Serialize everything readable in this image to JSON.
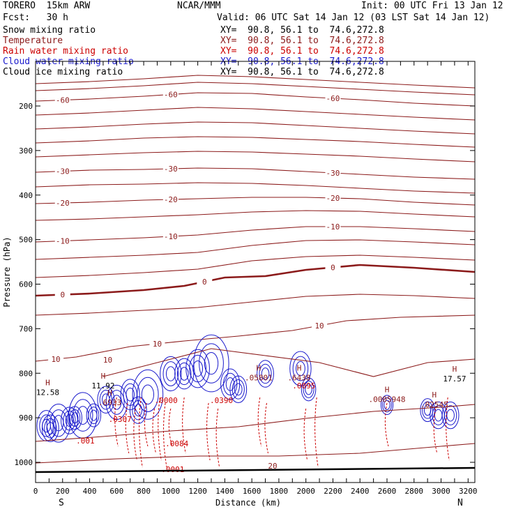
{
  "header": {
    "model": "TORERO  15km ARW",
    "center": "NCAR/MMM",
    "init": "Init: 00 UTC Fri 13 Jan 12",
    "fcst": "Fcst:   30 h",
    "valid": "Valid: 06 UTC Sat 14 Jan 12 (03 LST Sat 14 Jan 12)"
  },
  "legend": [
    {
      "label": "Snow mixing ratio",
      "xy": "XY=  90.8, 56.1 to  74.6,272.8",
      "color": "#000000"
    },
    {
      "label": "Temperature",
      "xy": "XY=  90.8, 56.1 to  74.6,272.8",
      "color": "#8b1a1a"
    },
    {
      "label": "Rain water mixing ratio",
      "xy": "XY=  90.8, 56.1 to  74.6,272.8",
      "color": "#cc0000"
    },
    {
      "label": "Cloud water mixing ratio",
      "xy": "XY=  90.8, 56.1 to  74.6,272.8",
      "color": "#1a1acc"
    },
    {
      "label": "Cloud ice mixing ratio",
      "xy": "XY=  90.8, 56.1 to  74.6,272.8",
      "color": "#000000"
    }
  ],
  "chart_data": {
    "type": "line",
    "title": "Vertical cross section",
    "xlabel": "Distance (km)",
    "ylabel": "Pressure (hPa)",
    "xlim": [
      0,
      3250
    ],
    "ylim": [
      1050,
      150
    ],
    "x_ticks": [
      0,
      100,
      200,
      300,
      400,
      500,
      600,
      700,
      800,
      900,
      1000,
      1100,
      1200,
      1300,
      1400,
      1500,
      1600,
      1700,
      1800,
      1900,
      2000,
      2100,
      2200,
      2300,
      2400,
      2500,
      2600,
      2700,
      2800,
      2900,
      3000,
      3100,
      3200
    ],
    "x_tick_labels": [
      "0",
      "200",
      "400",
      "600",
      "800",
      "1000",
      "1200",
      "1400",
      "1600",
      "1800",
      "2000",
      "2200",
      "2400",
      "2600",
      "2800",
      "3000",
      "3200"
    ],
    "y_tick_labels": [
      "200",
      "300",
      "400",
      "500",
      "600",
      "700",
      "800",
      "900",
      "1000"
    ],
    "endpoints": {
      "left": "S",
      "right": "N"
    },
    "temperature_isotherms": [
      {
        "name": "-60a",
        "points": [
          [
            0,
            120
          ],
          [
            400,
            117
          ],
          [
            800,
            113
          ],
          [
            1200,
            108
          ],
          [
            1600,
            110
          ],
          [
            2000,
            114
          ],
          [
            2400,
            118
          ],
          [
            2800,
            122
          ],
          [
            3250,
            126
          ]
        ]
      },
      {
        "name": "-60b",
        "points": [
          [
            0,
            130
          ],
          [
            400,
            127
          ],
          [
            800,
            123
          ],
          [
            1200,
            118
          ],
          [
            1600,
            120
          ],
          [
            2000,
            124
          ],
          [
            2400,
            128
          ],
          [
            2800,
            132
          ],
          [
            3250,
            136
          ]
        ]
      },
      {
        "name": "-60",
        "label": "-60",
        "points": [
          [
            0,
            145
          ],
          [
            400,
            142
          ],
          [
            800,
            138
          ],
          [
            1200,
            133
          ],
          [
            1600,
            134
          ],
          [
            2000,
            139
          ],
          [
            2400,
            143
          ],
          [
            2800,
            148
          ],
          [
            3250,
            152
          ]
        ]
      },
      {
        "name": "-55",
        "points": [
          [
            0,
            165
          ],
          [
            400,
            162
          ],
          [
            800,
            158
          ],
          [
            1200,
            154
          ],
          [
            1600,
            156
          ],
          [
            2000,
            160
          ],
          [
            2400,
            164
          ],
          [
            2800,
            168
          ],
          [
            3250,
            172
          ]
        ]
      },
      {
        "name": "-52",
        "points": [
          [
            0,
            185
          ],
          [
            400,
            182
          ],
          [
            800,
            178
          ],
          [
            1200,
            175
          ],
          [
            1600,
            176
          ],
          [
            2000,
            180
          ],
          [
            2400,
            184
          ],
          [
            2800,
            188
          ],
          [
            3250,
            192
          ]
        ]
      },
      {
        "name": "-48",
        "points": [
          [
            0,
            205
          ],
          [
            400,
            202
          ],
          [
            800,
            198
          ],
          [
            1200,
            196
          ],
          [
            1600,
            197
          ],
          [
            2000,
            200
          ],
          [
            2400,
            203
          ],
          [
            2800,
            207
          ],
          [
            3250,
            211
          ]
        ]
      },
      {
        "name": "-44",
        "points": [
          [
            0,
            225
          ],
          [
            400,
            222
          ],
          [
            800,
            219
          ],
          [
            1200,
            217
          ],
          [
            1600,
            218
          ],
          [
            2000,
            221
          ],
          [
            2400,
            224
          ],
          [
            2800,
            228
          ],
          [
            3250,
            232
          ]
        ]
      },
      {
        "name": "-30",
        "label": "-30",
        "points": [
          [
            0,
            247
          ],
          [
            400,
            244
          ],
          [
            800,
            243
          ],
          [
            1200,
            241
          ],
          [
            1600,
            242
          ],
          [
            2000,
            246
          ],
          [
            2400,
            250
          ],
          [
            2800,
            254
          ],
          [
            3250,
            257
          ]
        ]
      },
      {
        "name": "-26",
        "points": [
          [
            0,
            268
          ],
          [
            400,
            265
          ],
          [
            800,
            264
          ],
          [
            1200,
            262
          ],
          [
            1600,
            263
          ],
          [
            2000,
            266
          ],
          [
            2400,
            270
          ],
          [
            2800,
            274
          ],
          [
            3250,
            277
          ]
        ]
      },
      {
        "name": "-20",
        "label": "-20",
        "points": [
          [
            0,
            292
          ],
          [
            400,
            290
          ],
          [
            800,
            287
          ],
          [
            1200,
            285
          ],
          [
            1600,
            283
          ],
          [
            2000,
            283
          ],
          [
            2400,
            285
          ],
          [
            2800,
            290
          ],
          [
            3250,
            294
          ]
        ]
      },
      {
        "name": "-16",
        "points": [
          [
            0,
            316
          ],
          [
            400,
            314
          ],
          [
            800,
            311
          ],
          [
            1200,
            308
          ],
          [
            1600,
            304
          ],
          [
            2000,
            302
          ],
          [
            2400,
            303
          ],
          [
            2800,
            307
          ],
          [
            3250,
            311
          ]
        ]
      },
      {
        "name": "-10",
        "label": "-10",
        "points": [
          [
            0,
            347
          ],
          [
            400,
            344
          ],
          [
            800,
            341
          ],
          [
            1200,
            337
          ],
          [
            1600,
            330
          ],
          [
            2000,
            325
          ],
          [
            2400,
            325
          ],
          [
            2800,
            328
          ],
          [
            3250,
            332
          ]
        ]
      },
      {
        "name": "-6",
        "points": [
          [
            0,
            372
          ],
          [
            400,
            369
          ],
          [
            800,
            366
          ],
          [
            1200,
            362
          ],
          [
            1600,
            352
          ],
          [
            2000,
            345
          ],
          [
            2400,
            344
          ],
          [
            2800,
            347
          ],
          [
            3250,
            351
          ]
        ]
      },
      {
        "name": "-3",
        "points": [
          [
            0,
            398
          ],
          [
            400,
            395
          ],
          [
            800,
            391
          ],
          [
            1200,
            386
          ],
          [
            1600,
            374
          ],
          [
            2000,
            368
          ],
          [
            2400,
            366
          ],
          [
            2800,
            369
          ],
          [
            3250,
            373
          ]
        ]
      },
      {
        "name": "0",
        "label": "0",
        "heavy": true,
        "points": [
          [
            0,
            424
          ],
          [
            400,
            421
          ],
          [
            800,
            416
          ],
          [
            1100,
            410
          ],
          [
            1400,
            398
          ],
          [
            1700,
            396
          ],
          [
            2000,
            387
          ],
          [
            2400,
            380
          ],
          [
            2800,
            384
          ],
          [
            3250,
            390
          ]
        ]
      },
      {
        "name": "3",
        "points": [
          [
            0,
            452
          ],
          [
            400,
            449
          ],
          [
            800,
            445
          ],
          [
            1200,
            441
          ],
          [
            1600,
            433
          ],
          [
            2000,
            425
          ],
          [
            2400,
            422
          ],
          [
            2800,
            424
          ],
          [
            3250,
            428
          ]
        ]
      },
      {
        "name": "10",
        "label": "10",
        "points": [
          [
            0,
            518
          ],
          [
            300,
            512
          ],
          [
            700,
            497
          ],
          [
            1100,
            489
          ],
          [
            1500,
            482
          ],
          [
            1900,
            474
          ],
          [
            2300,
            460
          ],
          [
            2700,
            455
          ],
          [
            3250,
            452
          ]
        ]
      }
    ],
    "h_markers": [
      {
        "x": 90,
        "p": 843,
        "value": "12.58"
      },
      {
        "x": 500,
        "p": 828,
        "value": "11.92"
      },
      {
        "x": 3100,
        "p": 812,
        "value": "17.57"
      },
      {
        "x": 550,
        "p": 865,
        "value": ".6933"
      },
      {
        "x": 1650,
        "p": 810,
        "value": ".05801"
      },
      {
        "x": 1950,
        "p": 810,
        "value": ".6438"
      },
      {
        "x": 2600,
        "p": 858,
        "value": ".0005948"
      },
      {
        "x": 2950,
        "p": 870,
        "value": ".02545"
      }
    ],
    "annotations": [
      ".001",
      ".0307",
      ".0001",
      ".0095",
      ".0000",
      ".0390",
      ".0084",
      "20",
      "10"
    ]
  }
}
